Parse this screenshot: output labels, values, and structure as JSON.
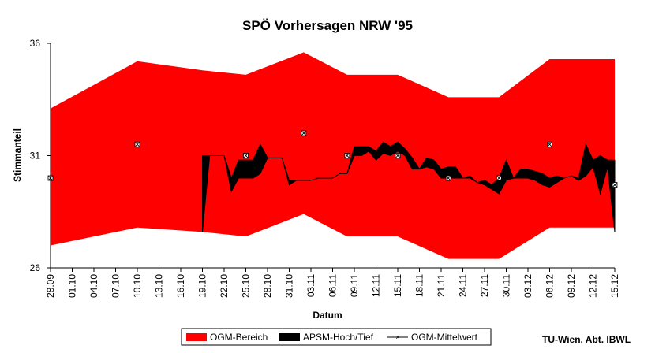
{
  "chart_data": {
    "type": "area",
    "title": "SPÖ Vorhersagen NRW '95",
    "xlabel": "Datum",
    "ylabel": "Stimmanteil",
    "ylim": [
      26,
      36
    ],
    "yticks": [
      26,
      31,
      36
    ],
    "x_range": [
      "28.09",
      "15.12"
    ],
    "x_tick_labels": [
      "28.09",
      "01.10",
      "04.10",
      "07.10",
      "10.10",
      "13.10",
      "16.10",
      "19.10",
      "22.10",
      "25.10",
      "28.10",
      "31.10",
      "03.11",
      "06.11",
      "09.11",
      "12.11",
      "15.11",
      "18.11",
      "21.11",
      "24.11",
      "27.11",
      "30.11",
      "03.12",
      "06.12",
      "09.12",
      "12.12",
      "15.12"
    ],
    "grid": false,
    "legend_position": "bottom",
    "series": [
      {
        "name": "OGM-Bereich",
        "color": "#ff0000",
        "x": [
          "28.09",
          "10.10",
          "19.10",
          "25.10",
          "02.11",
          "08.11",
          "15.11",
          "22.11",
          "29.11",
          "06.12",
          "15.12"
        ],
        "high": [
          33.1,
          35.2,
          34.8,
          34.6,
          35.6,
          34.6,
          34.6,
          33.6,
          33.6,
          35.3,
          35.3
        ],
        "low": [
          27.0,
          27.8,
          27.6,
          27.4,
          28.4,
          27.4,
          27.4,
          26.4,
          26.4,
          27.8,
          27.8
        ]
      },
      {
        "name": "APSM-Hoch/Tief",
        "color": "#000000",
        "x": [
          "19.10",
          "20.10",
          "21.10",
          "22.10",
          "23.10",
          "24.10",
          "25.10",
          "26.10",
          "27.10",
          "28.10",
          "29.10",
          "30.10",
          "31.10",
          "01.11",
          "02.11",
          "03.11",
          "04.11",
          "05.11",
          "06.11",
          "07.11",
          "08.11",
          "09.11",
          "10.11",
          "11.11",
          "12.11",
          "13.11",
          "14.11",
          "15.11",
          "16.11",
          "17.11",
          "18.11",
          "19.11",
          "20.11",
          "21.11",
          "22.11",
          "23.11",
          "24.11",
          "25.11",
          "26.11",
          "27.11",
          "28.11",
          "29.11",
          "30.11",
          "01.12",
          "02.12",
          "03.12",
          "04.12",
          "05.12",
          "06.12",
          "07.12",
          "08.12",
          "09.12",
          "10.12",
          "11.12",
          "12.12",
          "13.12",
          "14.12",
          "15.12"
        ],
        "high": [
          31.0,
          31.0,
          31.0,
          31.0,
          30.0,
          30.8,
          30.8,
          30.8,
          31.5,
          30.9,
          30.9,
          30.9,
          29.9,
          29.9,
          29.9,
          29.9,
          30.0,
          30.0,
          30.0,
          30.2,
          30.2,
          31.4,
          31.4,
          31.4,
          31.2,
          31.6,
          31.4,
          31.6,
          31.3,
          30.9,
          30.4,
          30.9,
          30.8,
          30.4,
          30.5,
          30.5,
          30.0,
          30.1,
          29.8,
          29.9,
          29.7,
          30.0,
          30.8,
          30.0,
          30.4,
          30.4,
          30.3,
          30.2,
          30.0,
          30.1,
          30.0,
          30.1,
          30.0,
          31.5,
          30.8,
          31.0,
          30.8,
          30.8
        ],
        "low": [
          27.6,
          31.0,
          31.0,
          31.0,
          29.4,
          30.0,
          30.0,
          30.0,
          30.2,
          30.9,
          30.9,
          30.9,
          29.7,
          29.9,
          29.9,
          29.9,
          30.0,
          30.0,
          30.0,
          30.2,
          30.2,
          31.0,
          31.0,
          31.2,
          30.8,
          31.1,
          31.0,
          31.2,
          31.0,
          30.4,
          30.4,
          30.5,
          30.4,
          30.0,
          30.0,
          30.0,
          30.0,
          30.0,
          29.8,
          29.7,
          29.5,
          29.3,
          29.9,
          30.0,
          30.0,
          30.0,
          29.9,
          29.7,
          29.6,
          29.8,
          30.0,
          30.1,
          29.9,
          30.1,
          30.5,
          29.3,
          30.5,
          27.6
        ]
      },
      {
        "name": "OGM-Mittelwert",
        "color": "#000000",
        "x": [
          "28.09",
          "10.10",
          "25.10",
          "02.11",
          "08.11",
          "15.11",
          "22.11",
          "29.11",
          "06.12",
          "15.12"
        ],
        "values": [
          30.0,
          31.5,
          31.0,
          32.0,
          31.0,
          31.0,
          30.0,
          30.0,
          31.5,
          29.7
        ]
      }
    ]
  },
  "credit": "TU-Wien, Abt. IBWL"
}
